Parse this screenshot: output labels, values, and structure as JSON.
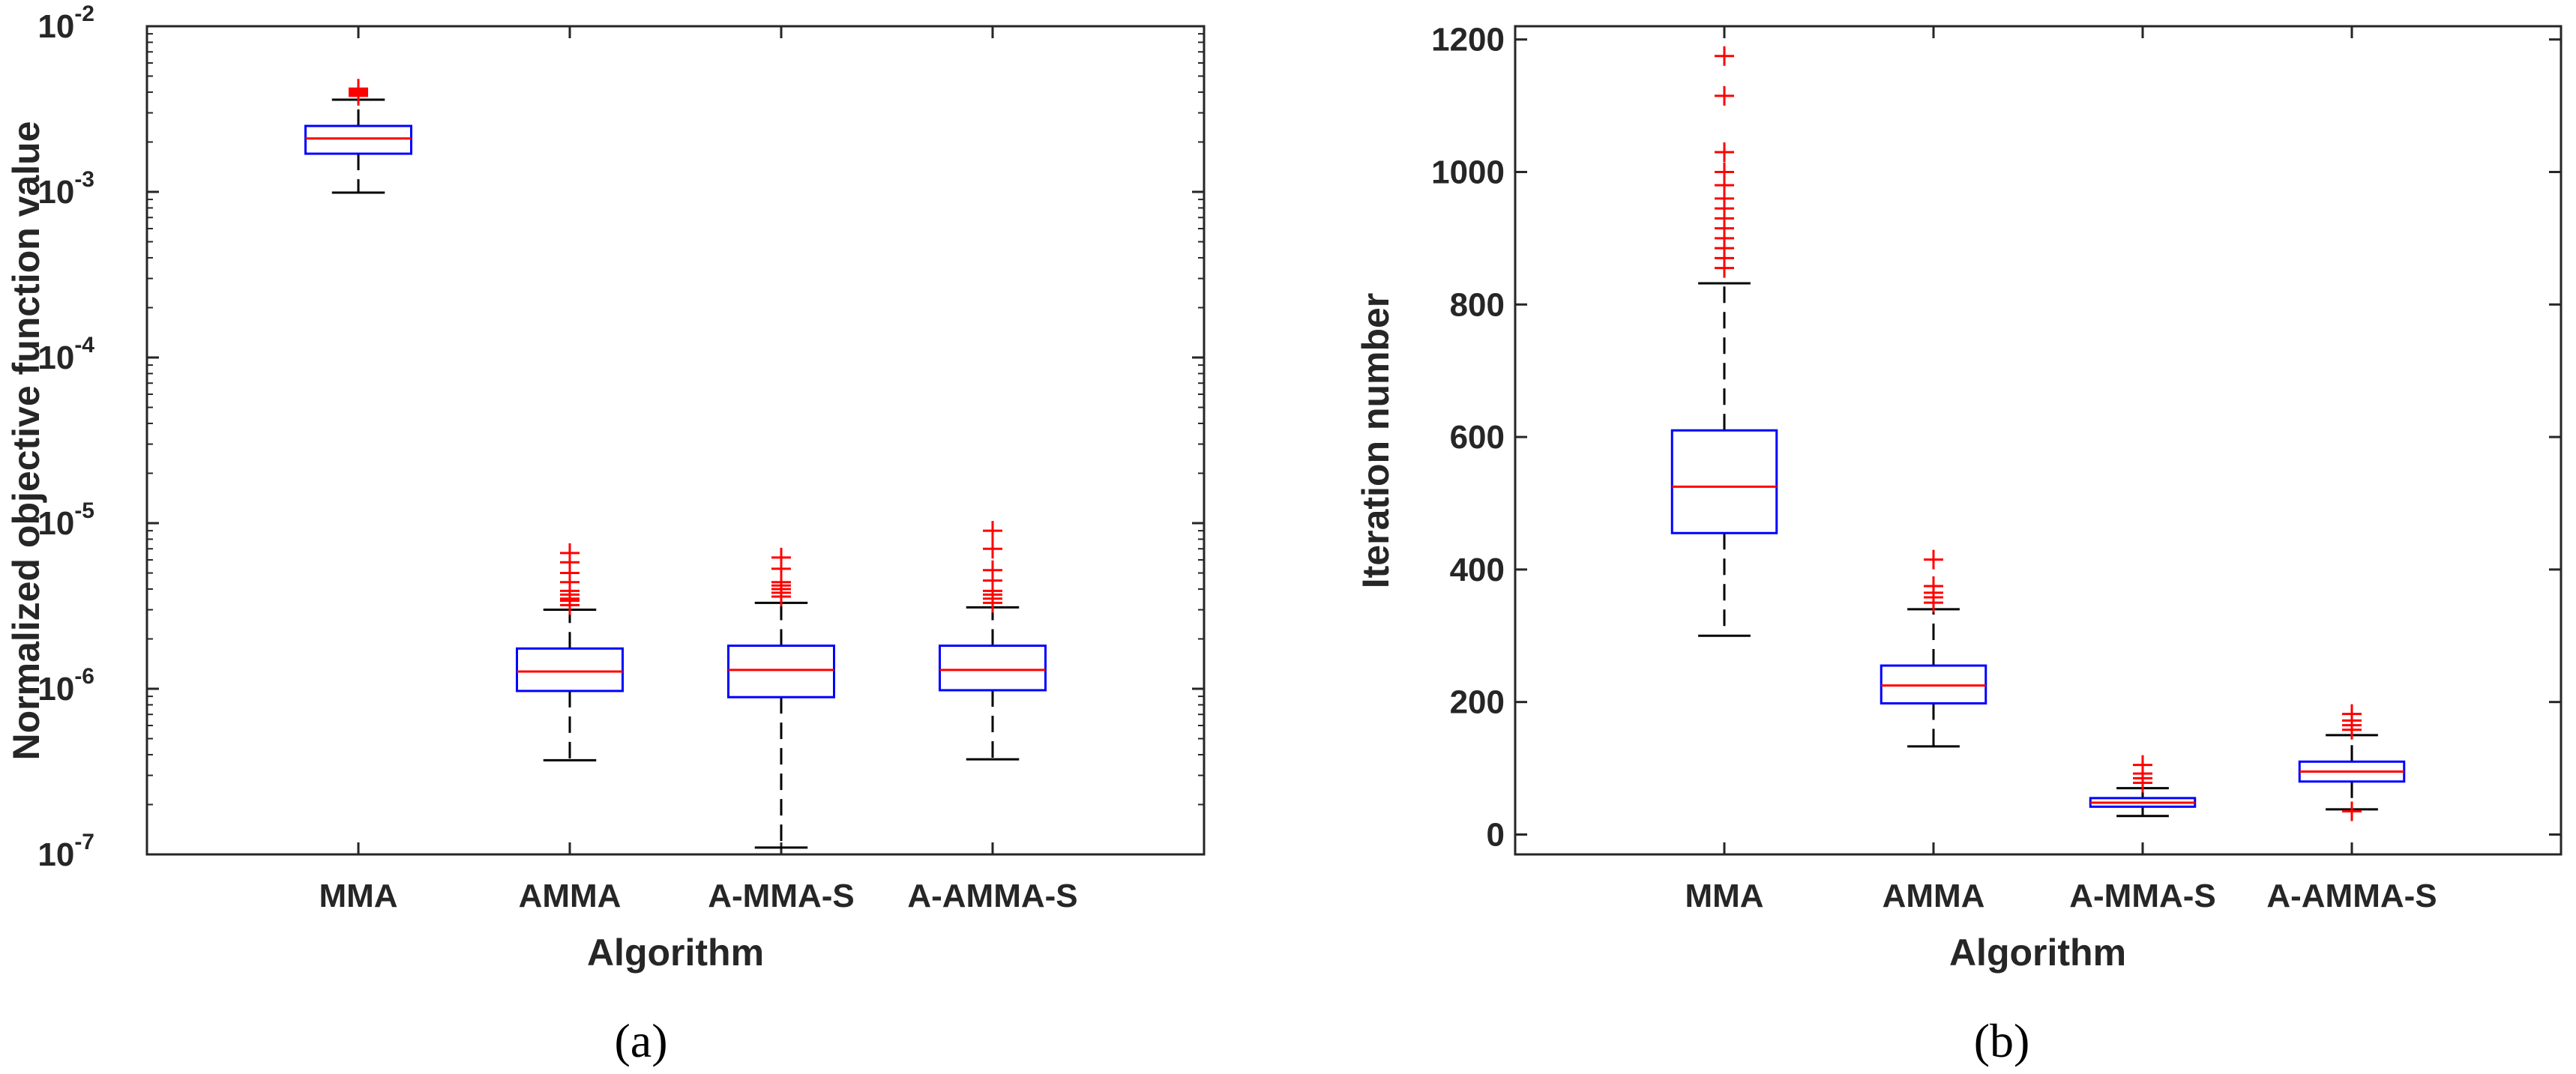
{
  "colors": {
    "box": "#0000ff",
    "median": "#ff0000",
    "outlier": "#ff0000",
    "whisker": "#000000",
    "axis": "#262626"
  },
  "chart_data": [
    {
      "id": "a",
      "type": "boxplot",
      "caption": "(a)",
      "xlabel": "Algorithm",
      "ylabel": "Normalized objective function value",
      "yscale": "log",
      "ylim": [
        1e-07,
        0.01
      ],
      "yticks": [
        {
          "base": "10",
          "exp": "-7",
          "value": 1e-07
        },
        {
          "base": "10",
          "exp": "-6",
          "value": 1e-06
        },
        {
          "base": "10",
          "exp": "-5",
          "value": 1e-05
        },
        {
          "base": "10",
          "exp": "-4",
          "value": 0.0001
        },
        {
          "base": "10",
          "exp": "-3",
          "value": 0.001
        },
        {
          "base": "10",
          "exp": "-2",
          "value": 0.01
        }
      ],
      "categories": [
        "MMA",
        "AMMA",
        "A-MMA-S",
        "A-AMMA-S"
      ],
      "boxes": [
        {
          "label": "MMA",
          "min": 0.00099,
          "q1": 0.0017,
          "median": 0.0021,
          "q3": 0.0025,
          "max": 0.0036,
          "outliers": [
            0.0038,
            0.0039,
            0.004,
            0.0041,
            0.0042
          ]
        },
        {
          "label": "AMMA",
          "min": 3.7e-07,
          "q1": 9.7e-07,
          "median": 1.27e-06,
          "q3": 1.75e-06,
          "max": 3e-06,
          "outliers": [
            3.2e-06,
            3.4e-06,
            3.5e-06,
            3.7e-06,
            3.9e-06,
            4.4e-06,
            5e-06,
            5.8e-06,
            6.6e-06
          ]
        },
        {
          "label": "A-MMA-S",
          "min": 1.1e-07,
          "q1": 8.9e-07,
          "median": 1.3e-06,
          "q3": 1.82e-06,
          "max": 3.3e-06,
          "outliers": [
            3.6e-06,
            3.8e-06,
            4e-06,
            4.2e-06,
            4.4e-06,
            5.3e-06,
            6.2e-06
          ]
        },
        {
          "label": "A-AMMA-S",
          "min": 3.75e-07,
          "q1": 9.8e-07,
          "median": 1.3e-06,
          "q3": 1.82e-06,
          "max": 3.1e-06,
          "outliers": [
            3.3e-06,
            3.5e-06,
            3.7e-06,
            3.9e-06,
            4.5e-06,
            5.2e-06,
            7e-06,
            9e-06
          ]
        }
      ]
    },
    {
      "id": "b",
      "type": "boxplot",
      "caption": "(b)",
      "xlabel": "Algorithm",
      "ylabel": "Iteration number",
      "yscale": "linear",
      "ylim": [
        -30,
        1220
      ],
      "yticks": [
        {
          "label": "0",
          "value": 0
        },
        {
          "label": "200",
          "value": 200
        },
        {
          "label": "400",
          "value": 400
        },
        {
          "label": "600",
          "value": 600
        },
        {
          "label": "800",
          "value": 800
        },
        {
          "label": "1000",
          "value": 1000
        },
        {
          "label": "1200",
          "value": 1200
        }
      ],
      "categories": [
        "MMA",
        "AMMA",
        "A-MMA-S",
        "A-AMMA-S"
      ],
      "boxes": [
        {
          "label": "MMA",
          "min": 300,
          "q1": 455,
          "median": 525,
          "q3": 610,
          "max": 832,
          "outliers": [
            855,
            870,
            885,
            900,
            915,
            930,
            945,
            960,
            980,
            1000,
            1030,
            1115,
            1175
          ]
        },
        {
          "label": "AMMA",
          "min": 133,
          "q1": 198,
          "median": 225,
          "q3": 255,
          "max": 340,
          "outliers": [
            350,
            358,
            365,
            375,
            415
          ]
        },
        {
          "label": "A-MMA-S",
          "min": 28,
          "q1": 42,
          "median": 48,
          "q3": 55,
          "max": 70,
          "outliers": [
            78,
            85,
            92,
            105
          ]
        },
        {
          "label": "A-AMMA-S",
          "min": 38,
          "q1": 80,
          "median": 95,
          "q3": 110,
          "max": 150,
          "outliers": [
            35,
            158,
            165,
            172,
            182
          ]
        }
      ]
    }
  ]
}
